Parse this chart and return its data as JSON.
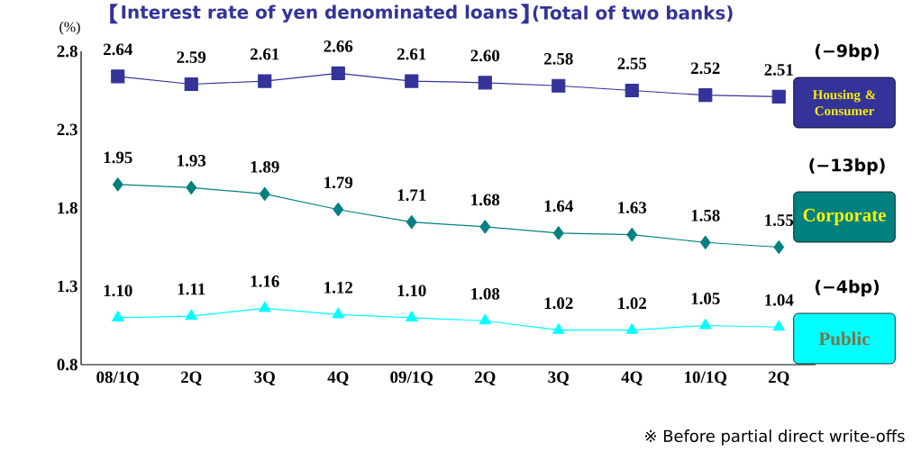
{
  "chart_data": {
    "type": "line",
    "title": "Interest rate of yen denominated loans",
    "subtitle": "(Total of two banks)",
    "ylabel": "(%)",
    "categories": [
      "08/1Q",
      "2Q",
      "3Q",
      "4Q",
      "09/1Q",
      "2Q",
      "3Q",
      "4Q",
      "10/1Q",
      "2Q"
    ],
    "ylim": [
      0.8,
      2.8
    ],
    "yticks": [
      0.8,
      1.3,
      1.8,
      2.3,
      2.8
    ],
    "line_style": "solid",
    "series": [
      {
        "name": "Housing & Consumer",
        "color": "#333399",
        "marker": "square",
        "values": [
          2.64,
          2.59,
          2.61,
          2.66,
          2.61,
          2.6,
          2.58,
          2.55,
          2.52,
          2.51
        ],
        "value_labels": [
          "2.64",
          "2.59",
          "2.61",
          "2.66",
          "2.61",
          "2.60",
          "2.58",
          "2.55",
          "2.52",
          "2.51"
        ]
      },
      {
        "name": "Corporate",
        "color": "#008080",
        "marker": "diamond",
        "values": [
          1.95,
          1.93,
          1.89,
          1.79,
          1.71,
          1.68,
          1.64,
          1.63,
          1.58,
          1.55
        ],
        "value_labels": [
          "1.95",
          "1.93",
          "1.89",
          "1.79",
          "1.71",
          "1.68",
          "1.64",
          "1.63",
          "1.58",
          "1.55"
        ]
      },
      {
        "name": "Public",
        "color": "#00FFFF",
        "marker": "triangle",
        "values": [
          1.1,
          1.11,
          1.16,
          1.12,
          1.1,
          1.08,
          1.02,
          1.02,
          1.05,
          1.04
        ],
        "value_labels": [
          "1.10",
          "1.11",
          "1.16",
          "1.12",
          "1.10",
          "1.08",
          "1.02",
          "1.02",
          "1.05",
          "1.04"
        ]
      }
    ],
    "annotations": [
      "(−9bp)",
      "(−13bp)",
      "(−4bp)",
      "※ Before partial direct write-offs"
    ]
  }
}
